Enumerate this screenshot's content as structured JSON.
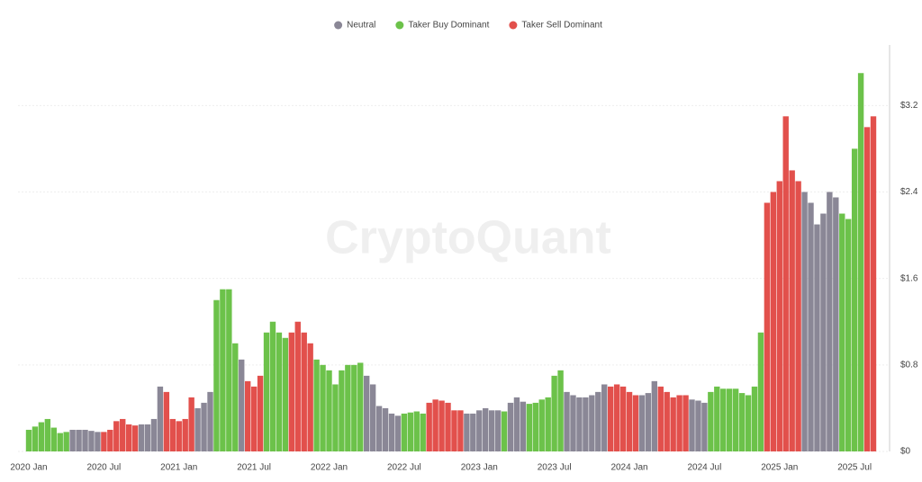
{
  "chart_data": {
    "type": "bar",
    "watermark": "CryptoQuant",
    "categories": [
      "2020 Jan",
      null,
      null,
      null,
      null,
      null,
      null,
      null,
      null,
      null,
      null,
      null,
      "2020 Jul",
      null,
      null,
      null,
      null,
      null,
      null,
      null,
      null,
      null,
      null,
      null,
      "2021 Jan",
      null,
      null,
      null,
      null,
      null,
      null,
      null,
      null,
      null,
      null,
      null,
      "2021 Jul",
      null,
      null,
      null,
      null,
      null,
      null,
      null,
      null,
      null,
      null,
      null,
      "2022 Jan",
      null,
      null,
      null,
      null,
      null,
      null,
      null,
      null,
      null,
      null,
      null,
      "2022 Jul",
      null,
      null,
      null,
      null,
      null,
      null,
      null,
      null,
      null,
      null,
      null,
      "2023 Jan",
      null,
      null,
      null,
      null,
      null,
      null,
      null,
      null,
      null,
      null,
      null,
      "2023 Jul",
      null,
      null,
      null,
      null,
      null,
      null,
      null,
      null,
      null,
      null,
      null,
      "2024 Jan",
      null,
      null,
      null,
      null,
      null,
      null,
      null,
      null,
      null,
      null,
      null,
      "2024 Jul",
      null,
      null,
      null,
      null,
      null,
      null,
      null,
      null,
      null,
      null,
      null,
      "2025 Jan",
      null,
      null,
      null,
      null,
      null,
      null,
      null,
      null,
      null,
      null,
      null,
      "2025 Jul",
      null,
      null,
      null
    ],
    "series": [
      {
        "name": "Neutral",
        "color": "#8a8796",
        "values": [
          null,
          null,
          null,
          null,
          null,
          null,
          null,
          0.2,
          0.2,
          0.2,
          0.19,
          0.18,
          null,
          null,
          null,
          null,
          null,
          null,
          0.25,
          0.25,
          0.3,
          0.6,
          null,
          null,
          null,
          null,
          null,
          0.4,
          0.45,
          0.55,
          null,
          null,
          null,
          null,
          0.85,
          null,
          null,
          null,
          null,
          null,
          null,
          null,
          null,
          null,
          null,
          null,
          null,
          null,
          null,
          null,
          null,
          null,
          null,
          null,
          0.7,
          0.62,
          0.42,
          0.4,
          0.35,
          0.33,
          null,
          null,
          null,
          null,
          null,
          null,
          null,
          null,
          null,
          null,
          0.35,
          0.35,
          0.38,
          0.4,
          0.38,
          0.38,
          null,
          0.45,
          0.5,
          0.46,
          null,
          null,
          null,
          null,
          null,
          null,
          0.55,
          0.52,
          0.5,
          0.5,
          0.52,
          0.55,
          0.62,
          null,
          null,
          null,
          null,
          null,
          0.52,
          0.54,
          0.65,
          null,
          null,
          null,
          null,
          null,
          0.48,
          0.47,
          0.45,
          null,
          null,
          null,
          null,
          null,
          null,
          null,
          null,
          null,
          null,
          null,
          null,
          null,
          null,
          null,
          2.4,
          2.3,
          2.1,
          2.2,
          2.4,
          2.35,
          null,
          null,
          null,
          null,
          null,
          null
        ]
      },
      {
        "name": "Taker Buy Dominant",
        "color": "#6cc24a",
        "values": [
          0.2,
          0.23,
          0.27,
          0.3,
          0.22,
          0.17,
          0.18,
          null,
          null,
          null,
          null,
          null,
          null,
          null,
          null,
          null,
          null,
          null,
          null,
          null,
          null,
          null,
          null,
          null,
          null,
          null,
          null,
          null,
          null,
          null,
          1.4,
          1.5,
          1.5,
          1,
          null,
          null,
          null,
          null,
          1.1,
          1.2,
          1.1,
          1.05,
          null,
          null,
          null,
          null,
          0.85,
          0.8,
          0.75,
          0.62,
          0.75,
          0.8,
          0.8,
          0.82,
          null,
          null,
          null,
          null,
          null,
          null,
          0.35,
          0.36,
          0.37,
          0.35,
          null,
          null,
          null,
          null,
          null,
          null,
          null,
          null,
          null,
          null,
          null,
          null,
          0.37,
          null,
          null,
          null,
          0.44,
          0.45,
          0.48,
          0.5,
          0.7,
          0.75,
          null,
          null,
          null,
          null,
          null,
          null,
          null,
          null,
          null,
          null,
          null,
          null,
          null,
          null,
          null,
          null,
          null,
          null,
          null,
          null,
          null,
          null,
          null,
          0.55,
          0.6,
          0.58,
          0.58,
          0.58,
          0.54,
          0.52,
          0.6,
          1.1,
          null,
          null,
          null,
          null,
          null,
          null,
          null,
          null,
          null,
          null,
          null,
          null,
          2.2,
          2.15,
          2.8,
          3.5,
          null,
          null
        ]
      },
      {
        "name": "Taker Sell Dominant",
        "color": "#e2504c",
        "values": [
          null,
          null,
          null,
          null,
          null,
          null,
          null,
          null,
          null,
          null,
          null,
          null,
          0.18,
          0.2,
          0.28,
          0.3,
          0.25,
          0.24,
          null,
          null,
          null,
          null,
          0.55,
          0.3,
          0.28,
          0.3,
          0.5,
          null,
          null,
          null,
          null,
          null,
          null,
          null,
          null,
          0.65,
          0.6,
          0.7,
          null,
          null,
          null,
          null,
          1.1,
          1.2,
          1.1,
          1,
          null,
          null,
          null,
          null,
          null,
          null,
          null,
          null,
          null,
          null,
          null,
          null,
          null,
          null,
          null,
          null,
          null,
          null,
          0.45,
          0.48,
          0.47,
          0.45,
          0.38,
          0.38,
          null,
          null,
          null,
          null,
          null,
          null,
          null,
          null,
          null,
          null,
          null,
          null,
          null,
          null,
          null,
          null,
          null,
          null,
          null,
          null,
          null,
          null,
          null,
          0.6,
          0.62,
          0.6,
          0.55,
          0.52,
          null,
          null,
          null,
          0.6,
          0.55,
          0.5,
          0.52,
          0.52,
          null,
          null,
          null,
          null,
          null,
          null,
          null,
          null,
          null,
          null,
          null,
          null,
          2.3,
          2.4,
          2.5,
          3.1,
          2.6,
          2.5,
          null,
          null,
          null,
          null,
          null,
          null,
          null,
          null,
          null,
          null,
          3,
          3.1
        ]
      }
    ],
    "ylim": [
      0,
      3.76
    ],
    "yticks": [
      {
        "value": 0,
        "label": "$0"
      },
      {
        "value": 0.8,
        "label": "$0.8"
      },
      {
        "value": 1.6,
        "label": "$1.6"
      },
      {
        "value": 2.4,
        "label": "$2.4"
      },
      {
        "value": 3.2,
        "label": "$3.2"
      }
    ],
    "grid": true,
    "legend": "top"
  }
}
